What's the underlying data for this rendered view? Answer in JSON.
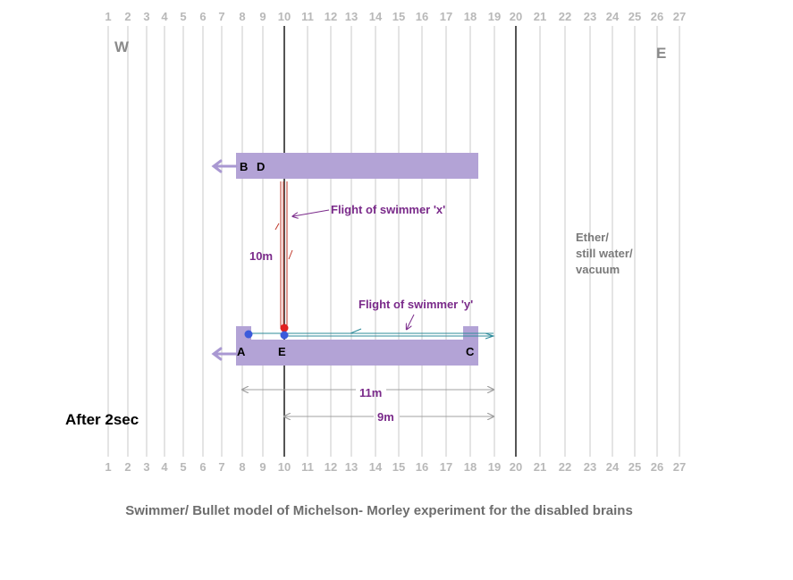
{
  "scale": {
    "ticks": [
      "1",
      "2",
      "3",
      "4",
      "5",
      "6",
      "7",
      "8",
      "9",
      "10",
      "11",
      "12",
      "13",
      "14",
      "15",
      "16",
      "17",
      "18",
      "19",
      "20",
      "21",
      "22",
      "23",
      "24",
      "25",
      "26",
      "27"
    ]
  },
  "compass": {
    "west": "W",
    "east": "E"
  },
  "platforms": {
    "top": {
      "label_b": "B",
      "label_d": "D"
    },
    "bottom": {
      "label_a": "A",
      "label_e": "E",
      "label_c": "C"
    }
  },
  "annotations": {
    "swimmer_x": "Flight of swimmer 'x'",
    "swimmer_y": "Flight of swimmer 'y'",
    "distance_10m": "10m",
    "distance_11m": "11m",
    "distance_9m": "9m",
    "medium_line1": "Ether/",
    "medium_line2": "still water/",
    "medium_line3": "vacuum",
    "time": "After 2sec"
  },
  "caption": "Swimmer/ Bullet model of Michelson- Morley experiment for the disabled brains",
  "colors": {
    "platform": "#b3a3d6",
    "grid": "#c8c8c8",
    "dark_line": "#555555",
    "swimmer_x_path": "#c0392b",
    "swimmer_y_path": "#2e8b9a",
    "dot_red": "#e02020",
    "dot_blue": "#3b5bdb",
    "arrow": "#a998d2"
  }
}
